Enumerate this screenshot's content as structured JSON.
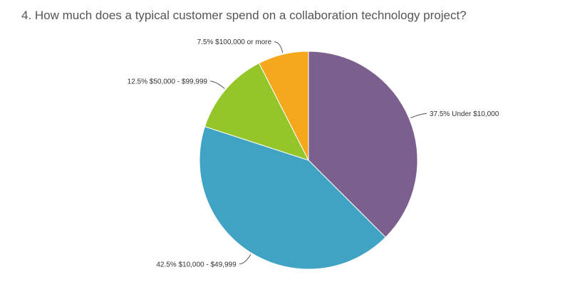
{
  "question": {
    "title": "4. How much does a typical customer spend on a collaboration technology project?"
  },
  "chart_data": {
    "type": "pie",
    "title": "4. How much does a typical customer spend on a collaboration technology project?",
    "start_angle_deg": 0,
    "direction": "clockwise",
    "slices": [
      {
        "label": "Under $10,000",
        "percent_label": "37.5%",
        "value": 37.5,
        "color": "#7a5f8f"
      },
      {
        "label": "$10,000 - $49,999",
        "percent_label": "42.5%",
        "value": 42.5,
        "color": "#40a3c3"
      },
      {
        "label": "$50,000 - $99,999",
        "percent_label": "12.5%",
        "value": 12.5,
        "color": "#95c629"
      },
      {
        "label": "$100,000 or more",
        "percent_label": "7.5%",
        "value": 7.5,
        "color": "#f5a81c"
      }
    ]
  }
}
